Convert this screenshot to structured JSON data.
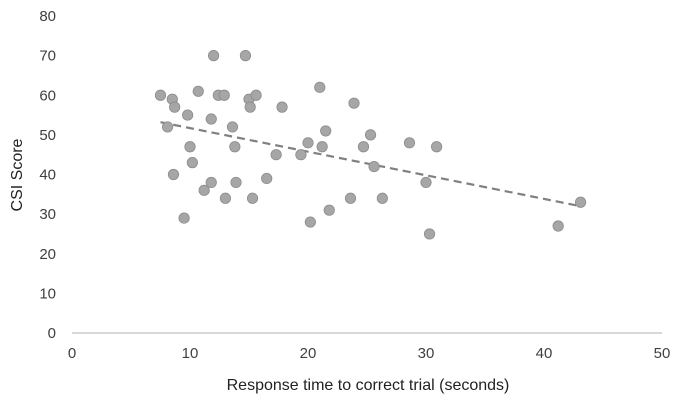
{
  "chart_data": {
    "type": "scatter",
    "title": "",
    "xlabel": "Response time to correct trial (seconds)",
    "ylabel": "CSI Score",
    "xlim": [
      0,
      50
    ],
    "ylim": [
      0,
      80
    ],
    "x_ticks": [
      0,
      10,
      20,
      30,
      40,
      50
    ],
    "y_ticks": [
      0,
      10,
      20,
      30,
      40,
      50,
      60,
      70,
      80
    ],
    "grid": false,
    "legend": "none",
    "colors": {
      "marker": "#a6a6a6",
      "marker_edge": "#8c8c8c",
      "trendline": "#808080",
      "axis": "#bfbfbf",
      "text": "#404040"
    },
    "series": [
      {
        "points": [
          [
            7.5,
            60
          ],
          [
            8.1,
            52
          ],
          [
            8.5,
            59
          ],
          [
            8.7,
            57
          ],
          [
            8.6,
            40
          ],
          [
            9.5,
            29
          ],
          [
            9.8,
            55
          ],
          [
            10.0,
            47
          ],
          [
            10.2,
            43
          ],
          [
            10.7,
            61
          ],
          [
            11.2,
            36
          ],
          [
            11.8,
            38
          ],
          [
            11.8,
            54
          ],
          [
            12.0,
            70
          ],
          [
            12.4,
            60
          ],
          [
            12.9,
            60
          ],
          [
            13.0,
            34
          ],
          [
            13.6,
            52
          ],
          [
            13.8,
            47
          ],
          [
            13.9,
            38
          ],
          [
            14.7,
            70
          ],
          [
            15.0,
            59
          ],
          [
            15.1,
            57
          ],
          [
            15.3,
            34
          ],
          [
            15.6,
            60
          ],
          [
            16.5,
            39
          ],
          [
            17.3,
            45
          ],
          [
            17.8,
            57
          ],
          [
            19.4,
            45
          ],
          [
            20.0,
            48
          ],
          [
            20.2,
            28
          ],
          [
            21.0,
            62
          ],
          [
            21.2,
            47
          ],
          [
            21.5,
            51
          ],
          [
            21.8,
            31
          ],
          [
            23.6,
            34
          ],
          [
            23.9,
            58
          ],
          [
            24.7,
            47
          ],
          [
            25.3,
            50
          ],
          [
            25.6,
            42
          ],
          [
            26.3,
            34
          ],
          [
            28.6,
            48
          ],
          [
            30.0,
            38
          ],
          [
            30.3,
            25
          ],
          [
            30.9,
            47
          ],
          [
            41.2,
            27
          ],
          [
            43.1,
            33
          ]
        ]
      }
    ],
    "trendline": {
      "style": "dashed",
      "from": [
        7.5,
        53.2
      ],
      "to": [
        43.1,
        32.0
      ]
    }
  }
}
